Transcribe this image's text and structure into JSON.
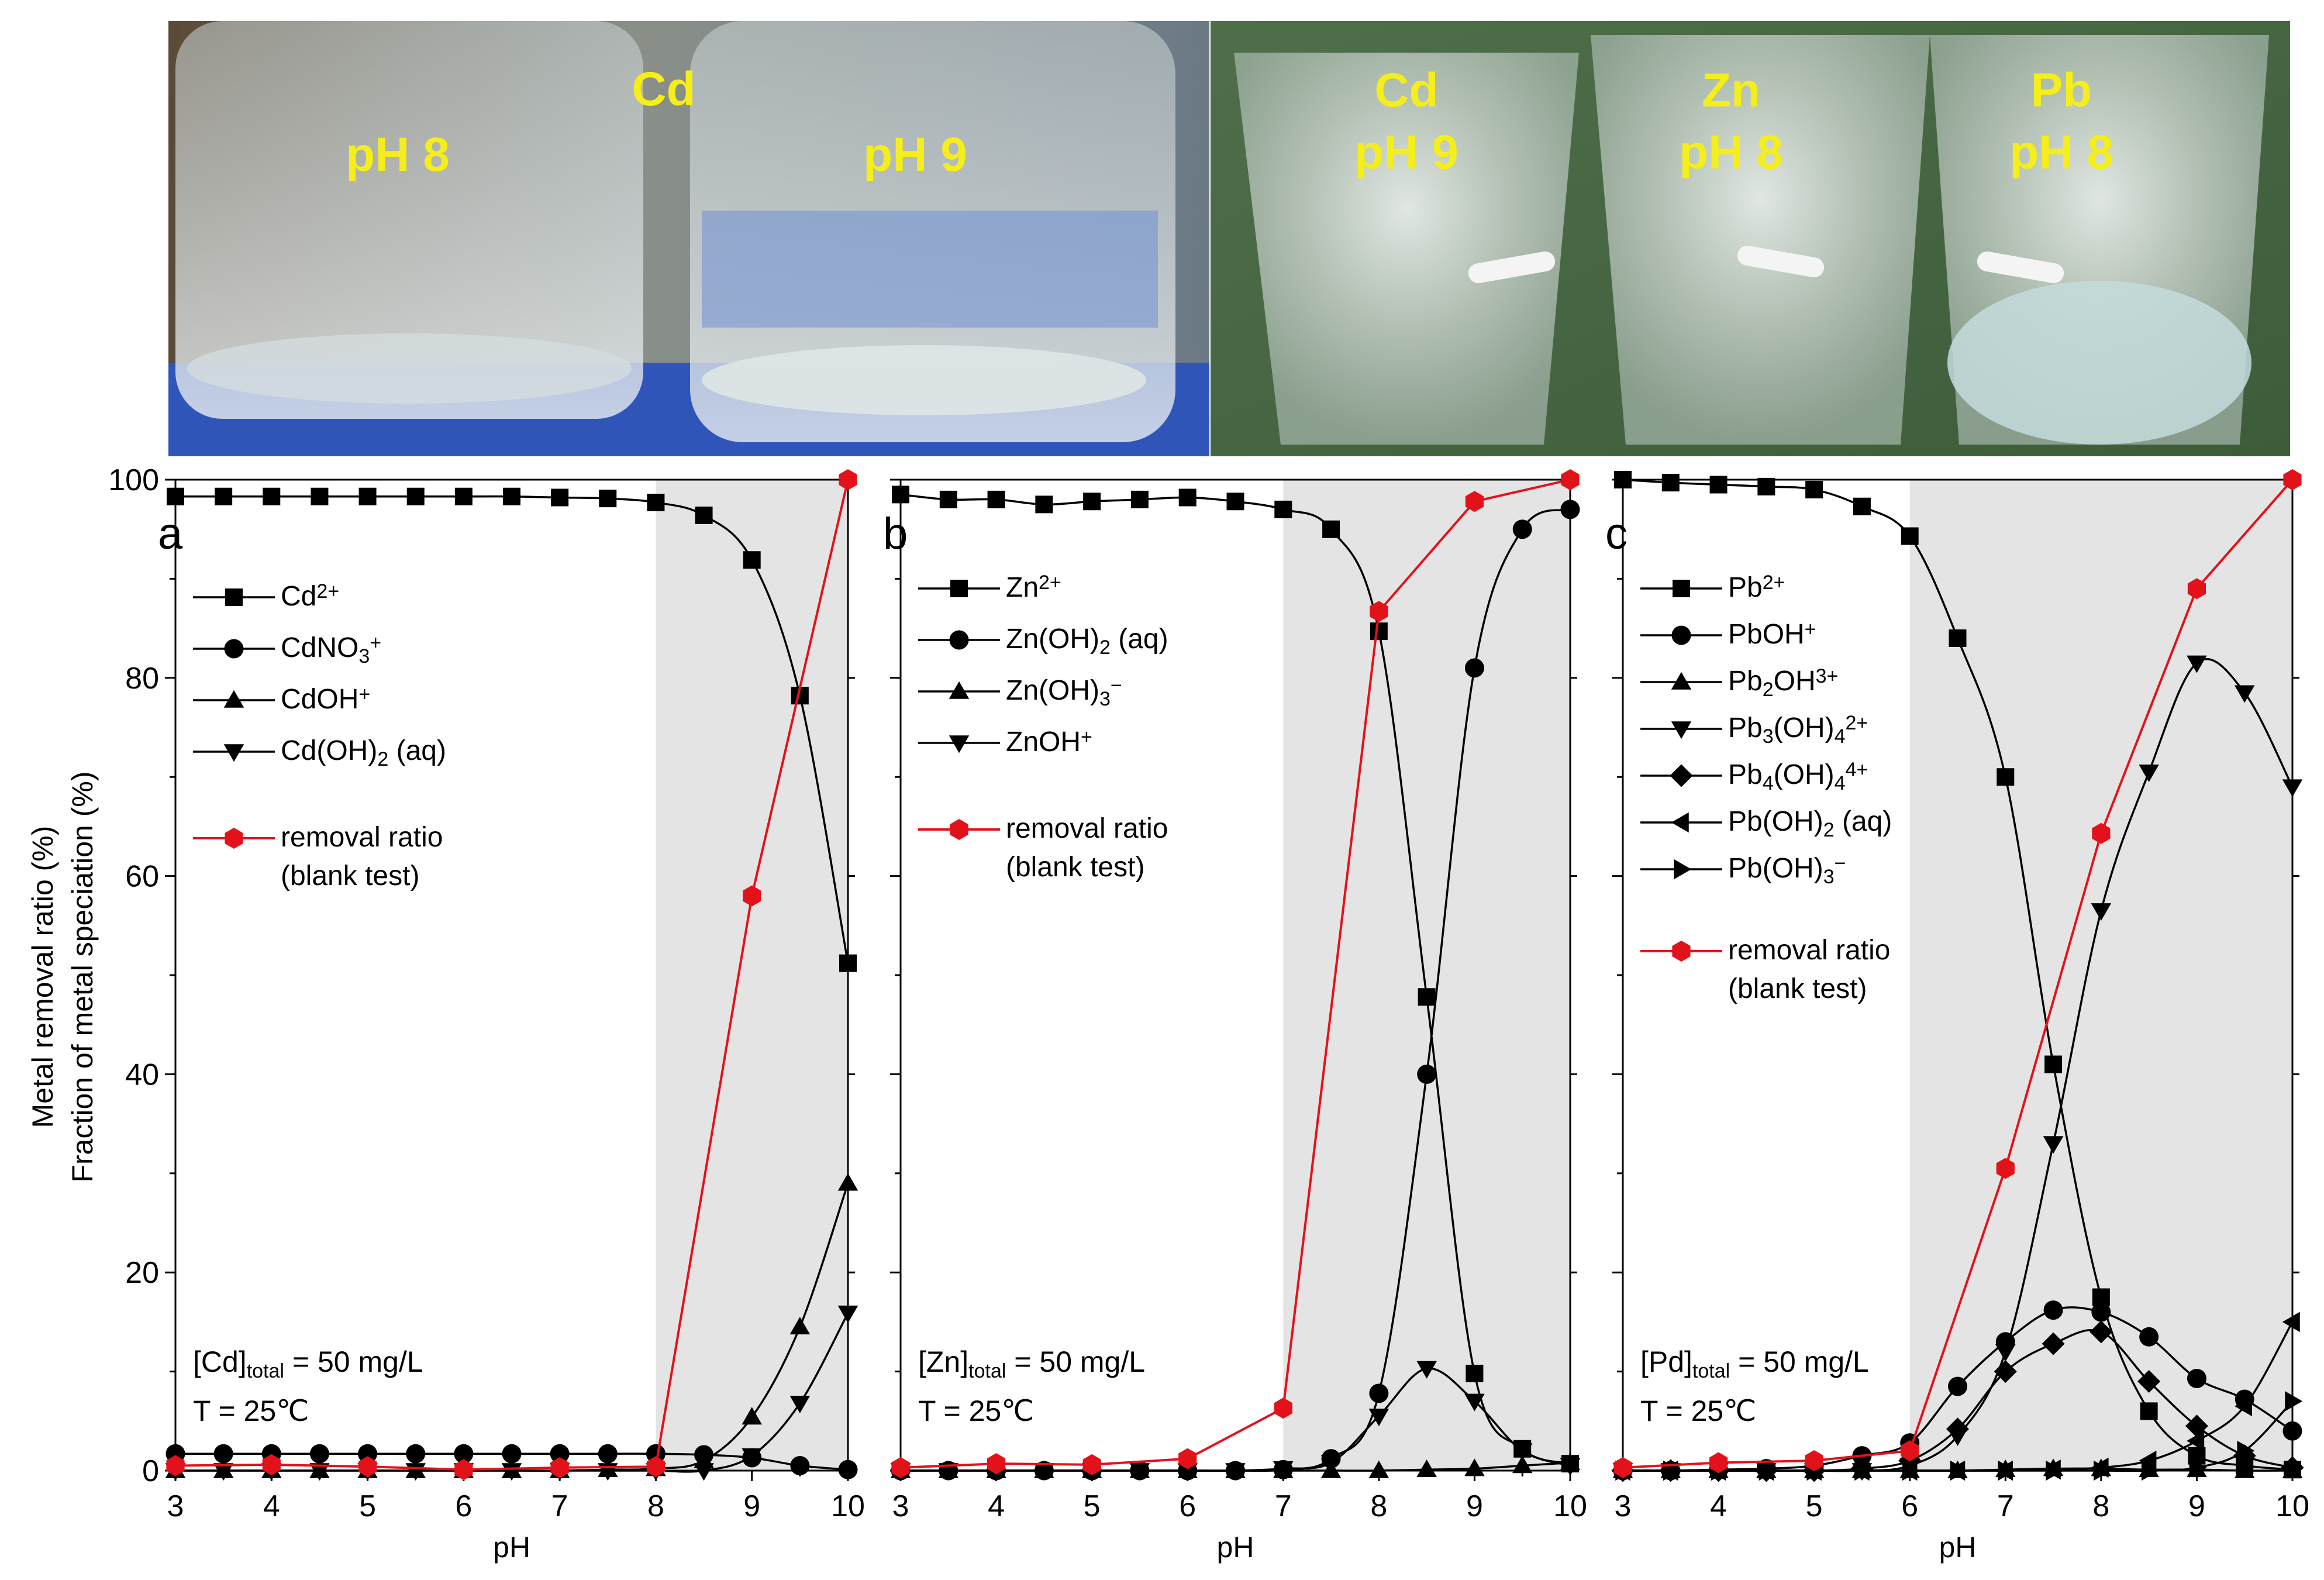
{
  "photos": {
    "left": {
      "labels": [
        "pH 8",
        "Cd",
        "pH 9"
      ]
    },
    "right": {
      "labels": [
        "Cd",
        "pH 9",
        "Zn",
        "pH 8",
        "Pb",
        "pH 8"
      ]
    }
  },
  "colors": {
    "removal": "#e3121a",
    "species": "#000000",
    "shade": "#e4e4e4",
    "photo_text": "#f5ee1a"
  },
  "y_axis_title_line1": "Metal removal ratio (%)",
  "y_axis_title_line2": "Fraction of metal speciation (%)",
  "chart_data": [
    {
      "type": "line",
      "panel_letter": "a",
      "xlabel": "pH",
      "ylabel": "Metal removal ratio (%) / Fraction of metal speciation (%)",
      "xlim": [
        3,
        10
      ],
      "ylim": [
        0,
        100
      ],
      "xticks": [
        3,
        4,
        5,
        6,
        7,
        8,
        9,
        10
      ],
      "yticks": [
        0,
        20,
        40,
        60,
        80,
        100
      ],
      "shaded_x": [
        8,
        10
      ],
      "annotation": {
        "line1_main": "[Cd]",
        "line1_sub": "total",
        "line1_rest": " = 50 mg/L",
        "line2": "T = 25℃"
      },
      "series": [
        {
          "name": "Cd2+",
          "label_main": "Cd",
          "label_sup": "2+",
          "marker": "square",
          "markers_x": [
            3,
            3.5,
            4,
            4.5,
            5,
            5.5,
            6,
            6.5,
            7,
            7.5,
            8,
            8.5,
            9,
            9.5,
            10
          ],
          "x": [
            3,
            3.5,
            4,
            4.5,
            5,
            5.5,
            6,
            6.5,
            7,
            7.5,
            8,
            8.5,
            9,
            9.5,
            10
          ],
          "y": [
            98.3,
            98.3,
            98.3,
            98.3,
            98.3,
            98.3,
            98.3,
            98.3,
            98.2,
            98.1,
            97.7,
            96.4,
            91.9,
            78.2,
            51.2
          ]
        },
        {
          "name": "CdNO3+",
          "label_main": "CdNO",
          "label_sub": "3",
          "label_sup": "+",
          "marker": "circle",
          "markers_x": [
            3,
            3.5,
            4,
            4.5,
            5,
            5.5,
            6,
            6.5,
            7,
            7.5,
            8,
            8.5,
            9,
            9.5,
            10
          ],
          "x": [
            3,
            3.5,
            4,
            4.5,
            5,
            5.5,
            6,
            6.5,
            7,
            7.5,
            8,
            8.5,
            9,
            9.5,
            10
          ],
          "y": [
            1.7,
            1.7,
            1.7,
            1.7,
            1.7,
            1.7,
            1.7,
            1.7,
            1.7,
            1.7,
            1.7,
            1.6,
            1.3,
            0.5,
            0.1
          ]
        },
        {
          "name": "CdOH+",
          "label_main": "CdOH",
          "label_sup": "+",
          "marker": "triangle-up",
          "markers_x": [
            3,
            3.5,
            4,
            4.5,
            5,
            5.5,
            6,
            6.5,
            7,
            7.5,
            8,
            8.5,
            9,
            9.5,
            10
          ],
          "x": [
            3,
            3.5,
            4,
            4.5,
            5,
            5.5,
            6,
            6.5,
            7,
            7.5,
            8,
            8.5,
            9,
            9.5,
            10
          ],
          "y": [
            0,
            0,
            0,
            0,
            0,
            0,
            0,
            0,
            0,
            0.1,
            0.2,
            1.0,
            5.4,
            14.5,
            29.0
          ]
        },
        {
          "name": "Cd(OH)2 (aq)",
          "label_main": "Cd(OH)",
          "label_sub": "2",
          "label_rest": " (aq)",
          "marker": "triangle-down",
          "markers_x": [
            3,
            3.5,
            4,
            4.5,
            5,
            5.5,
            6,
            6.5,
            7,
            7.5,
            8,
            8.5,
            9,
            9.5,
            10
          ],
          "x": [
            3,
            3.5,
            4,
            4.5,
            5,
            5.5,
            6,
            6.5,
            7,
            7.5,
            8,
            8.5,
            9,
            9.5,
            10
          ],
          "y": [
            0,
            0,
            0,
            0,
            0,
            0,
            0,
            0,
            0,
            0,
            0,
            0,
            1.5,
            6.8,
            15.9
          ]
        },
        {
          "name": "removal ratio (blank test)",
          "label_main": "removal ratio",
          "label_line2": "(blank test)",
          "marker": "hexagon",
          "color": "red",
          "markers_x": [
            3,
            4,
            5,
            6,
            7,
            8,
            9,
            10
          ],
          "x": [
            3,
            4,
            5,
            6,
            7,
            8,
            9,
            10
          ],
          "y": [
            0.5,
            0.6,
            0.4,
            0.1,
            0.3,
            0.4,
            58.0,
            100.0
          ]
        }
      ]
    },
    {
      "type": "line",
      "panel_letter": "b",
      "xlabel": "pH",
      "xlim": [
        3,
        10
      ],
      "ylim": [
        0,
        100
      ],
      "xticks": [
        3,
        4,
        5,
        6,
        7,
        8,
        9,
        10
      ],
      "shaded_x": [
        7,
        10
      ],
      "annotation": {
        "line1_main": "[Zn]",
        "line1_sub": "total",
        "line1_rest": " = 50 mg/L",
        "line2": "T = 25℃"
      },
      "series": [
        {
          "name": "Zn2+",
          "label_main": "Zn",
          "label_sup": "2+",
          "marker": "square",
          "markers_x": [
            3,
            3.5,
            4,
            4.5,
            5,
            5.5,
            6,
            6.5,
            7,
            7.5,
            8,
            8.5,
            9,
            9.5,
            10
          ],
          "x": [
            3,
            3.5,
            4,
            4.5,
            5,
            5.5,
            6,
            6.5,
            7,
            7.5,
            8,
            8.5,
            9,
            9.5,
            10
          ],
          "y": [
            98.5,
            98.0,
            98.0,
            97.5,
            97.8,
            98.0,
            98.2,
            97.8,
            97.0,
            95.0,
            84.7,
            47.8,
            9.8,
            2.2,
            0.7
          ]
        },
        {
          "name": "Zn(OH)2 (aq)",
          "label_main": "Zn(OH)",
          "label_sub": "2",
          "label_rest": " (aq)",
          "marker": "circle",
          "markers_x": [
            3,
            3.5,
            4,
            4.5,
            5,
            5.5,
            6,
            6.5,
            7,
            7.5,
            8,
            8.5,
            9,
            9.5,
            10
          ],
          "x": [
            3,
            3.5,
            4,
            4.5,
            5,
            5.5,
            6,
            6.5,
            7,
            7.5,
            8,
            8.5,
            9,
            9.5,
            10
          ],
          "y": [
            0,
            0,
            0,
            0,
            0,
            0,
            0,
            0,
            0.1,
            1.2,
            7.8,
            40.0,
            81.0,
            95.0,
            97.0
          ]
        },
        {
          "name": "Zn(OH)3-",
          "label_main": "Zn(OH)",
          "label_sub": "3",
          "label_sup": "−",
          "marker": "triangle-up",
          "markers_x": [
            3,
            3.5,
            4,
            4.5,
            5,
            5.5,
            6,
            6.5,
            7,
            7.5,
            8,
            8.5,
            9,
            9.5,
            10
          ],
          "x": [
            3,
            3.5,
            4,
            4.5,
            5,
            5.5,
            6,
            6.5,
            7,
            7.5,
            8,
            8.5,
            9,
            9.5,
            10
          ],
          "y": [
            0,
            0,
            0,
            0,
            0,
            0,
            0,
            0,
            0,
            0,
            0,
            0.1,
            0.2,
            0.5,
            0.8
          ]
        },
        {
          "name": "ZnOH+",
          "label_main": "ZnOH",
          "label_sup": "+",
          "marker": "triangle-down",
          "markers_x": [
            3,
            3.5,
            4,
            4.5,
            5,
            5.5,
            6,
            6.5,
            7,
            7.5,
            8,
            8.5,
            9,
            9.5,
            10
          ],
          "x": [
            3,
            3.5,
            4,
            4.5,
            5,
            5.5,
            6,
            6.5,
            7,
            7.5,
            8,
            8.5,
            9,
            9.5,
            10
          ],
          "y": [
            0,
            0,
            0,
            0,
            0,
            0,
            0,
            0,
            0.2,
            0.8,
            5.5,
            10.3,
            7.0,
            2.0,
            0.5
          ]
        },
        {
          "name": "removal ratio (blank test)",
          "label_main": "removal ratio",
          "label_line2": "(blank test)",
          "marker": "hexagon",
          "color": "red",
          "markers_x": [
            3,
            4,
            5,
            6,
            7,
            8,
            9,
            10
          ],
          "x": [
            3,
            4,
            5,
            6,
            7,
            8,
            9,
            10
          ],
          "y": [
            0.3,
            0.7,
            0.6,
            1.2,
            6.3,
            86.7,
            97.8,
            100.0
          ]
        }
      ]
    },
    {
      "type": "line",
      "panel_letter": "c",
      "xlabel": "pH",
      "xlim": [
        3,
        10
      ],
      "ylim": [
        0,
        100
      ],
      "xticks": [
        3,
        4,
        5,
        6,
        7,
        8,
        9,
        10
      ],
      "shaded_x": [
        6,
        10
      ],
      "annotation": {
        "line1_main": "[Pd]",
        "line1_sub": "total",
        "line1_rest": " = 50 mg/L",
        "line2": "T = 25℃"
      },
      "series": [
        {
          "name": "Pb2+",
          "label_main": "Pb",
          "label_sup": "2+",
          "marker": "square",
          "markers_x": [
            3,
            3.5,
            4,
            4.5,
            5,
            5.5,
            6,
            6.5,
            7,
            7.5,
            8,
            8.5,
            9,
            9.5,
            10
          ],
          "x": [
            3,
            3.5,
            4,
            4.5,
            5,
            5.5,
            6,
            6.5,
            7,
            7.5,
            8,
            8.5,
            9,
            9.5,
            10
          ],
          "y": [
            100,
            99.7,
            99.5,
            99.3,
            99.0,
            97.3,
            94.3,
            84.0,
            70.0,
            41.0,
            17.5,
            6.0,
            1.5,
            0.5,
            0.1
          ]
        },
        {
          "name": "PbOH+",
          "label_main": "PbOH",
          "label_sup": "+",
          "marker": "circle",
          "markers_x": [
            3,
            3.5,
            4,
            4.5,
            5,
            5.5,
            6,
            6.5,
            7,
            7.5,
            8,
            8.5,
            9,
            9.5,
            10
          ],
          "x": [
            3,
            3.5,
            4,
            4.5,
            5,
            5.5,
            6,
            6.5,
            7,
            7.5,
            8,
            8.5,
            9,
            9.5,
            10
          ],
          "y": [
            0,
            0,
            0.1,
            0.2,
            0.5,
            1.5,
            2.8,
            8.5,
            13.0,
            16.2,
            16.0,
            13.5,
            9.3,
            7.2,
            4.0
          ]
        },
        {
          "name": "Pb2OH3+",
          "label_main": "Pb",
          "label_sub": "2",
          "label_main2": "OH",
          "label_sup": "3+",
          "marker": "triangle-up",
          "markers_x": [
            3,
            3.5,
            4,
            4.5,
            5,
            5.5,
            6,
            6.5,
            7,
            7.5,
            8,
            8.5,
            9,
            9.5,
            10
          ],
          "x": [
            3,
            3.5,
            4,
            4.5,
            5,
            5.5,
            6,
            6.5,
            7,
            7.5,
            8,
            8.5,
            9,
            9.5,
            10
          ],
          "y": [
            0,
            0,
            0,
            0,
            0,
            0,
            0,
            0,
            0.1,
            0.2,
            0.2,
            0.1,
            0.1,
            0,
            0
          ]
        },
        {
          "name": "Pb3(OH)4 2+",
          "label_main": "Pb",
          "label_sub": "3",
          "label_main2": "(OH)",
          "label_sub2": "4",
          "label_sup": "2+",
          "marker": "triangle-down",
          "markers_x": [
            3,
            3.5,
            4,
            4.5,
            5,
            5.5,
            6,
            6.5,
            7,
            7.5,
            8,
            8.5,
            9,
            9.5,
            10
          ],
          "x": [
            3,
            3.5,
            4,
            4.5,
            5,
            5.5,
            6,
            6.5,
            7,
            7.5,
            8,
            8.5,
            9,
            9.5,
            10
          ],
          "y": [
            0,
            0,
            0,
            0,
            0,
            0,
            0.5,
            3.5,
            12.0,
            33.0,
            56.5,
            70.5,
            81.5,
            78.5,
            69.0
          ]
        },
        {
          "name": "Pb4(OH)4 4+",
          "label_main": "Pb",
          "label_sub": "4",
          "label_main2": "(OH)",
          "label_sub2": "4",
          "label_sup": "4+",
          "marker": "diamond",
          "markers_x": [
            3,
            3.5,
            4,
            4.5,
            5,
            5.5,
            6,
            6.5,
            7,
            7.5,
            8,
            8.5,
            9,
            9.5,
            10
          ],
          "x": [
            3,
            3.5,
            4,
            4.5,
            5,
            5.5,
            6,
            6.5,
            7,
            7.5,
            8,
            8.5,
            9,
            9.5,
            10
          ],
          "y": [
            0,
            0,
            0,
            0,
            0,
            0.2,
            1.0,
            4.2,
            10.0,
            12.8,
            14.0,
            9.0,
            4.5,
            1.5,
            0.3
          ]
        },
        {
          "name": "Pb(OH)2 (aq)",
          "label_main": "Pb(OH)",
          "label_sub": "2",
          "label_rest": " (aq)",
          "marker": "triangle-left",
          "markers_x": [
            3,
            3.5,
            4,
            4.5,
            5,
            5.5,
            6,
            6.5,
            7,
            7.5,
            8,
            8.5,
            9,
            9.5,
            10
          ],
          "x": [
            3,
            3.5,
            4,
            4.5,
            5,
            5.5,
            6,
            6.5,
            7,
            7.5,
            8,
            8.5,
            9,
            9.5,
            10
          ],
          "y": [
            0,
            0,
            0,
            0,
            0,
            0,
            0,
            0,
            0,
            0.1,
            0.3,
            1.0,
            3.0,
            6.5,
            15.0
          ]
        },
        {
          "name": "Pb(OH)3-",
          "label_main": "Pb(OH)",
          "label_sub": "3",
          "label_sup": "−",
          "marker": "triangle-right",
          "markers_x": [
            3,
            3.5,
            4,
            4.5,
            5,
            5.5,
            6,
            6.5,
            7,
            7.5,
            8,
            8.5,
            9,
            9.5,
            10
          ],
          "x": [
            3,
            3.5,
            4,
            4.5,
            5,
            5.5,
            6,
            6.5,
            7,
            7.5,
            8,
            8.5,
            9,
            9.5,
            10
          ],
          "y": [
            0,
            0,
            0,
            0,
            0,
            0,
            0,
            0,
            0,
            0,
            0,
            0,
            0.3,
            2.0,
            7.0
          ]
        },
        {
          "name": "removal ratio (blank test)",
          "label_main": "removal ratio",
          "label_line2": "(blank test)",
          "marker": "hexagon",
          "color": "red",
          "markers_x": [
            3,
            4,
            5,
            6,
            7,
            8,
            9,
            10
          ],
          "x": [
            3,
            4,
            5,
            6,
            7,
            8,
            9,
            10
          ],
          "y": [
            0.3,
            0.8,
            1.0,
            2.0,
            30.5,
            64.3,
            89.0,
            100.0
          ]
        }
      ]
    }
  ]
}
